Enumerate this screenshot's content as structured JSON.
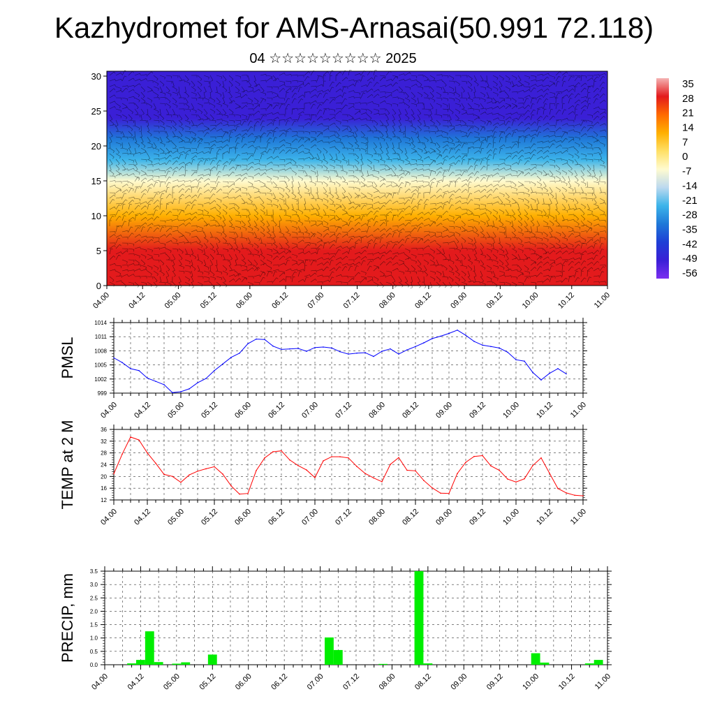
{
  "header": {
    "title": "Kazhydromet for AMS-Arnasai(50.991 72.118)",
    "subtitle": "04 ☆☆☆☆☆☆☆☆☆ 2025"
  },
  "chart_data": [
    {
      "type": "heatmap",
      "id": "cross_section",
      "title": "",
      "x_ticks": [
        "04.00",
        "04.12",
        "05.00",
        "05.12",
        "06.00",
        "06.12",
        "07.00",
        "07.12",
        "08.00",
        "08.12",
        "09.00",
        "09.12",
        "10.00",
        "10.12",
        "11.00"
      ],
      "y_ticks": [
        0,
        5,
        10,
        15,
        20,
        25,
        30
      ],
      "ylim": [
        0,
        30.7
      ],
      "colorbar": {
        "labels": [
          "35",
          "28",
          "21",
          "14",
          "7",
          "0",
          "-7",
          "-14",
          "-21",
          "-28",
          "-35",
          "-42",
          "-49",
          "-56"
        ],
        "colors": [
          "#f5b3b3",
          "#e31a1c",
          "#ff6a00",
          "#ffb000",
          "#ffe066",
          "#fffbd0",
          "#bcd9ef",
          "#3cb4ea",
          "#1f78d8",
          "#1e3fd6",
          "#3a1fd6",
          "#7b2ff0"
        ]
      },
      "field_by_level": [
        {
          "level": 0,
          "value": 28
        },
        {
          "level": 5,
          "value": 24
        },
        {
          "level": 10,
          "value": 10
        },
        {
          "level": 15,
          "value": -8
        },
        {
          "level": 18,
          "value": -25
        },
        {
          "level": 21,
          "value": -40
        },
        {
          "level": 24,
          "value": -52
        },
        {
          "level": 27,
          "value": -50
        },
        {
          "level": 30.7,
          "value": -56
        }
      ],
      "overlay": "wind barbs",
      "grid": false
    },
    {
      "type": "line",
      "id": "pmsl",
      "ylabel": "PMSL",
      "ylim": [
        999,
        1014
      ],
      "y_ticks": [
        "999",
        "1002",
        "1005",
        "1008",
        "1011",
        "1014"
      ],
      "x_ticks": [
        "04.00",
        "04.12",
        "05.00",
        "05.12",
        "06.00",
        "06.12",
        "07.00",
        "07.12",
        "08.00",
        "08.12",
        "09.00",
        "09.12",
        "10.00",
        "10.12",
        "11.00"
      ],
      "color": "#0000ff",
      "grid": true,
      "x": [
        0,
        3,
        6,
        9,
        12,
        15,
        18,
        21,
        24,
        27,
        30,
        33,
        36,
        39,
        42,
        45,
        48,
        51,
        54,
        57,
        60,
        63,
        66,
        69,
        72,
        75,
        78,
        81,
        84,
        87,
        90,
        93,
        96,
        99,
        102,
        105,
        108,
        111,
        114,
        117,
        120,
        123,
        126,
        129,
        132,
        135,
        138,
        141,
        144,
        147,
        150,
        153,
        156,
        159,
        162
      ],
      "values": [
        1006.5,
        1005.5,
        1004.2,
        1003.8,
        1002.2,
        1001.5,
        1000.8,
        999.1,
        999.3,
        999.9,
        1001.2,
        1002.1,
        1003.8,
        1005.2,
        1006.6,
        1007.5,
        1009.5,
        1010.5,
        1010.4,
        1009,
        1008.3,
        1008.4,
        1008.5,
        1007.9,
        1008.7,
        1008.8,
        1008.6,
        1007.8,
        1007.3,
        1007.5,
        1007.6,
        1006.8,
        1007.9,
        1008.4,
        1007.3,
        1008.2,
        1008.9,
        1009.7,
        1010.6,
        1011.1,
        1011.7,
        1012.4,
        1011.3,
        1010,
        1009.2,
        1008.9,
        1008.6,
        1007.7,
        1006.1,
        1005.8,
        1003.4,
        1001.8,
        1003.2,
        1004.2,
        1003.1
      ]
    },
    {
      "type": "line",
      "id": "temp2m",
      "ylabel": "TEMP at 2 M",
      "ylim": [
        12,
        36
      ],
      "y_ticks": [
        "12",
        "16",
        "20",
        "24",
        "28",
        "32",
        "36"
      ],
      "x_ticks": [
        "04.00",
        "04.12",
        "05.00",
        "05.12",
        "06.00",
        "06.12",
        "07.00",
        "07.12",
        "08.00",
        "08.12",
        "09.00",
        "09.12",
        "10.00",
        "10.12",
        "11.00"
      ],
      "color": "#ff0000",
      "grid": true,
      "x": [
        0,
        3,
        6,
        9,
        12,
        15,
        18,
        21,
        24,
        27,
        30,
        33,
        36,
        39,
        42,
        45,
        48,
        51,
        54,
        57,
        60,
        63,
        66,
        69,
        72,
        75,
        78,
        81,
        84,
        87,
        90,
        93,
        96,
        99,
        102,
        105,
        108,
        111,
        114,
        117,
        120,
        123,
        126,
        129,
        132,
        135,
        138,
        141,
        144,
        147,
        150,
        153,
        156,
        159,
        162,
        165,
        168
      ],
      "values": [
        20.9,
        27.6,
        33.4,
        32.4,
        28,
        24.5,
        20.7,
        20,
        18,
        20.5,
        21.8,
        22.6,
        23.3,
        20.8,
        16.8,
        14,
        14.2,
        22,
        26.3,
        28.4,
        28.7,
        25.6,
        23.7,
        22.2,
        19.6,
        25.3,
        26.7,
        26.7,
        26.3,
        23.4,
        21,
        19.5,
        18.2,
        24.1,
        26.4,
        22.1,
        21.9,
        18.6,
        16.1,
        14.3,
        14.2,
        21,
        24.8,
        26.8,
        27.1,
        23.6,
        22.1,
        19.1,
        18.1,
        19.2,
        23.7,
        26.3,
        21.1,
        15.9,
        14.4,
        13.6,
        13.4
      ]
    },
    {
      "type": "bar",
      "id": "precip",
      "ylabel": "PRECIP, mm",
      "ylim": [
        0,
        3.5
      ],
      "y_ticks": [
        "0.0",
        "0.5",
        "1.0",
        "1.5",
        "2.0",
        "2.5",
        "3.0",
        "3.5"
      ],
      "x_ticks": [
        "04.00",
        "04.12",
        "05.00",
        "05.12",
        "06.00",
        "06.12",
        "07.00",
        "07.12",
        "08.00",
        "08.12",
        "09.00",
        "09.12",
        "10.00",
        "10.12",
        "11.00"
      ],
      "color": "#00ee00",
      "grid": true,
      "bar_hours": 3,
      "bars": [
        {
          "x": 9,
          "value": 0.05
        },
        {
          "x": 12,
          "value": 0.18
        },
        {
          "x": 15,
          "value": 1.25
        },
        {
          "x": 18,
          "value": 0.1
        },
        {
          "x": 24,
          "value": 0.04
        },
        {
          "x": 27,
          "value": 0.09
        },
        {
          "x": 36,
          "value": 0.38
        },
        {
          "x": 75,
          "value": 1.02
        },
        {
          "x": 78,
          "value": 0.55
        },
        {
          "x": 93,
          "value": 0.03
        },
        {
          "x": 105,
          "value": 3.5
        },
        {
          "x": 108,
          "value": 0.05
        },
        {
          "x": 144,
          "value": 0.43
        },
        {
          "x": 147,
          "value": 0.08
        },
        {
          "x": 162,
          "value": 0.05
        },
        {
          "x": 165,
          "value": 0.18
        }
      ]
    }
  ]
}
